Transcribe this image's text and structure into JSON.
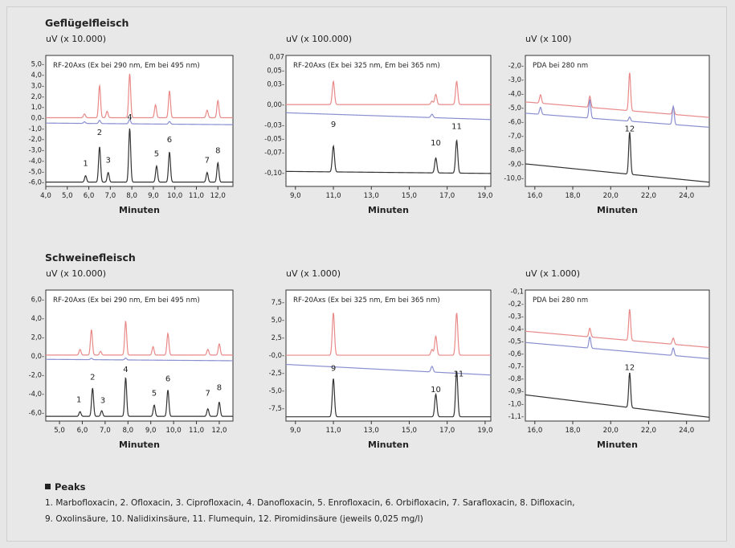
{
  "sections": [
    {
      "title": "Geflügelfleisch"
    },
    {
      "title": "Schweinefleisch"
    }
  ],
  "legend": {
    "header": "Peaks",
    "line1": "1. Marbofloxacin, 2. Ofloxacin, 3. Ciprofloxacin, 4. Danofloxacin, 5. Enrofloxacin, 6. Orbifloxacin, 7. Sarafloxacin, 8. Difloxacin,",
    "line2": "9. Oxolinsäure, 10. Nalidixinsäure, 11. Flumequin, 12. Piromidinsäure (jeweils 0,025 mg/l)"
  },
  "colors": {
    "red": "#e88a88",
    "blue": "#8a8fd0",
    "black": "#333333"
  },
  "chart_data": [
    {
      "type": "line",
      "section": 0,
      "col": 0,
      "unit_label": "uV (x 10.000)",
      "detector_label": "RF-20Axs (Ex bei 290 nm, Em bei 495 nm)",
      "xlabel": "Minuten",
      "xlim": [
        4.0,
        12.7
      ],
      "ylim": [
        -6.4,
        5.8
      ],
      "xticks": [
        4.0,
        5.0,
        6.0,
        7.0,
        8.0,
        9.0,
        10.0,
        11.0,
        12.0
      ],
      "xtick_labels": [
        "4,0",
        "5,0",
        "6,0",
        "7,0",
        "8,0",
        "9,0",
        "10,0",
        "11,0",
        "12,0"
      ],
      "yticks": [
        5.0,
        4.0,
        3.0,
        2.0,
        1.0,
        0.0,
        -1.0,
        -2.0,
        -3.0,
        -4.0,
        -5.0,
        -6.0
      ],
      "ytick_labels": [
        "5,0-",
        "4,0-",
        "3,0-",
        "2,0-",
        "1,0-",
        "0,0-",
        "-1,0-",
        "-2,0-",
        "-3,0-",
        "-4,0-",
        "-5,0-",
        "-6,0-"
      ],
      "series": [
        {
          "color": "red",
          "baseline": [
            0.0,
            0.0
          ],
          "peaks": [
            [
              5.8,
              0.35
            ],
            [
              6.5,
              3.0
            ],
            [
              6.85,
              0.6
            ],
            [
              7.9,
              4.1
            ],
            [
              9.1,
              1.2
            ],
            [
              9.75,
              2.5
            ],
            [
              11.5,
              0.7
            ],
            [
              12.0,
              1.6
            ]
          ]
        },
        {
          "color": "blue",
          "baseline": [
            -0.5,
            -0.65
          ],
          "peaks": [
            [
              5.8,
              0.15
            ],
            [
              6.5,
              0.3
            ],
            [
              7.9,
              0.4
            ],
            [
              9.75,
              0.25
            ]
          ]
        },
        {
          "color": "black",
          "baseline": [
            -6.0,
            -6.0
          ],
          "peaks": [
            [
              5.85,
              0.6
            ],
            [
              6.5,
              3.3
            ],
            [
              6.9,
              0.9
            ],
            [
              7.9,
              5.0
            ],
            [
              9.15,
              1.5
            ],
            [
              9.75,
              2.8
            ],
            [
              11.5,
              0.9
            ],
            [
              12.0,
              1.8
            ]
          ]
        }
      ],
      "peak_labels": [
        {
          "t": "1",
          "x": 5.85,
          "y": -4.5
        },
        {
          "t": "2",
          "x": 6.5,
          "y": -1.6
        },
        {
          "t": "3",
          "x": 6.9,
          "y": -4.2
        },
        {
          "t": "4",
          "x": 7.9,
          "y": -0.2
        },
        {
          "t": "5",
          "x": 9.15,
          "y": -3.6
        },
        {
          "t": "6",
          "x": 9.75,
          "y": -2.3
        },
        {
          "t": "7",
          "x": 11.5,
          "y": -4.2
        },
        {
          "t": "8",
          "x": 12.0,
          "y": -3.3
        }
      ]
    },
    {
      "type": "line",
      "section": 0,
      "col": 1,
      "unit_label": "uV (x 100.000)",
      "detector_label": "RF-20Axs (Ex bei 325 nm, Em bei 365 nm)",
      "xlabel": "Minuten",
      "xlim": [
        8.5,
        19.3
      ],
      "ylim": [
        -0.12,
        0.072
      ],
      "xticks": [
        9.0,
        11.0,
        13.0,
        15.0,
        17.0,
        19.0
      ],
      "xtick_labels": [
        "9,0",
        "11,0",
        "13,0",
        "15,0",
        "17,0",
        "19,0"
      ],
      "yticks": [
        0.07,
        0.05,
        0.03,
        0.0,
        -0.03,
        -0.05,
        -0.07,
        -0.1
      ],
      "ytick_labels": [
        "0,07",
        "0,05-",
        "0,03-",
        "0,00-",
        "-0,03-",
        "-0,05-",
        "-0,07-",
        "-0,10-"
      ],
      "series": [
        {
          "color": "red",
          "baseline": [
            0.0,
            0.0
          ],
          "peaks": [
            [
              11.0,
              0.034
            ],
            [
              16.2,
              0.005
            ],
            [
              16.4,
              0.015
            ],
            [
              17.5,
              0.034
            ]
          ]
        },
        {
          "color": "blue",
          "baseline": [
            -0.012,
            -0.022
          ],
          "peaks": [
            [
              16.2,
              0.005
            ]
          ]
        },
        {
          "color": "black",
          "baseline": [
            -0.098,
            -0.101
          ],
          "peaks": [
            [
              11.0,
              0.038
            ],
            [
              16.4,
              0.022
            ],
            [
              17.5,
              0.048
            ]
          ]
        }
      ],
      "peak_labels": [
        {
          "t": "9",
          "x": 11.0,
          "y": -0.033
        },
        {
          "t": "10",
          "x": 16.4,
          "y": -0.06
        },
        {
          "t": "11",
          "x": 17.5,
          "y": -0.036
        }
      ]
    },
    {
      "type": "line",
      "section": 0,
      "col": 2,
      "unit_label": "uV (x 100)",
      "detector_label": "PDA bei 280 nm",
      "xlabel": "Minuten",
      "xlim": [
        15.5,
        25.2
      ],
      "ylim": [
        -10.6,
        -1.3
      ],
      "xticks": [
        16.0,
        18.0,
        20.0,
        22.0,
        24.0
      ],
      "xtick_labels": [
        "16,0",
        "18,0",
        "20,0",
        "22,0",
        "24,0"
      ],
      "yticks": [
        -2.0,
        -3.0,
        -4.0,
        -5.0,
        -6.0,
        -7.0,
        -8.0,
        -9.0,
        -10.0
      ],
      "ytick_labels": [
        "-2,0-",
        "-3,0-",
        "-4,0-",
        "-5,0-",
        "-6,0-",
        "-7,0-",
        "-8,0-",
        "-9,0-",
        "-10,0-"
      ],
      "series": [
        {
          "color": "red",
          "baseline": [
            -4.6,
            -5.7
          ],
          "peaks": [
            [
              16.3,
              0.6
            ],
            [
              18.9,
              0.8
            ],
            [
              21.0,
              2.7
            ],
            [
              23.3,
              0.5
            ]
          ]
        },
        {
          "color": "blue",
          "baseline": [
            -5.4,
            -6.4
          ],
          "peaks": [
            [
              16.3,
              0.5
            ],
            [
              18.9,
              1.3
            ],
            [
              21.0,
              0.3
            ],
            [
              23.3,
              1.3
            ]
          ]
        },
        {
          "color": "black",
          "baseline": [
            -9.0,
            -10.3
          ],
          "peaks": [
            [
              21.0,
              3.0
            ]
          ]
        }
      ],
      "peak_labels": [
        {
          "t": "12",
          "x": 21.0,
          "y": -6.7
        }
      ]
    },
    {
      "type": "line",
      "section": 1,
      "col": 0,
      "unit_label": "uV (x 10.000)",
      "detector_label": "RF-20Axs (Ex bei 290 nm, Em bei 495 nm)",
      "xlabel": "Minuten",
      "xlim": [
        4.4,
        12.6
      ],
      "ylim": [
        -6.9,
        7.0
      ],
      "xticks": [
        5.0,
        6.0,
        7.0,
        8.0,
        9.0,
        10.0,
        11.0,
        12.0
      ],
      "xtick_labels": [
        "5,0",
        "6,0",
        "7,0",
        "8,0",
        "9,0",
        "10,0",
        "11,0",
        "12,0"
      ],
      "yticks": [
        6.0,
        4.0,
        2.0,
        0.0,
        -2.0,
        -4.0,
        -6.0
      ],
      "ytick_labels": [
        "6,0-",
        "4,0-",
        "2,0-",
        "0,0-",
        "-2,0-",
        "-4,0-",
        "-6,0-"
      ],
      "series": [
        {
          "color": "red",
          "baseline": [
            0.1,
            0.1
          ],
          "peaks": [
            [
              5.9,
              0.6
            ],
            [
              6.4,
              2.7
            ],
            [
              6.8,
              0.4
            ],
            [
              7.9,
              3.6
            ],
            [
              9.1,
              0.9
            ],
            [
              9.75,
              2.3
            ],
            [
              11.5,
              0.6
            ],
            [
              12.0,
              1.2
            ]
          ]
        },
        {
          "color": "blue",
          "baseline": [
            -0.35,
            -0.5
          ],
          "peaks": [
            [
              6.4,
              0.15
            ],
            [
              7.9,
              0.2
            ]
          ]
        },
        {
          "color": "black",
          "baseline": [
            -6.4,
            -6.4
          ],
          "peaks": [
            [
              5.9,
              0.5
            ],
            [
              6.45,
              3.0
            ],
            [
              6.85,
              0.6
            ],
            [
              7.9,
              4.1
            ],
            [
              9.15,
              1.2
            ],
            [
              9.75,
              2.8
            ],
            [
              11.5,
              0.8
            ],
            [
              12.0,
              1.5
            ]
          ]
        }
      ],
      "peak_labels": [
        {
          "t": "1",
          "x": 5.85,
          "y": -4.9
        },
        {
          "t": "2",
          "x": 6.45,
          "y": -2.5
        },
        {
          "t": "3",
          "x": 6.9,
          "y": -5.0
        },
        {
          "t": "4",
          "x": 7.9,
          "y": -1.7
        },
        {
          "t": "5",
          "x": 9.15,
          "y": -4.2
        },
        {
          "t": "6",
          "x": 9.75,
          "y": -2.7
        },
        {
          "t": "7",
          "x": 11.5,
          "y": -4.2
        },
        {
          "t": "8",
          "x": 12.0,
          "y": -3.6
        }
      ]
    },
    {
      "type": "line",
      "section": 1,
      "col": 1,
      "unit_label": "uV (x 1.000)",
      "detector_label": "RF-20Axs (Ex bei 325 nm, Em bei 365 nm)",
      "xlabel": "Minuten",
      "xlim": [
        8.5,
        19.3
      ],
      "ylim": [
        -9.3,
        9.2
      ],
      "xticks": [
        9.0,
        11.0,
        13.0,
        15.0,
        17.0,
        19.0
      ],
      "xtick_labels": [
        "9,0",
        "11,0",
        "13,0",
        "15,0",
        "17,0",
        "19,0"
      ],
      "yticks": [
        7.5,
        5.0,
        2.5,
        0.0,
        -2.5,
        -5.0,
        -7.5
      ],
      "ytick_labels": [
        "7,5-",
        "5,0-",
        "2,5-",
        "-0,0-",
        "-2,5-",
        "-5,0-",
        "-7,5-"
      ],
      "series": [
        {
          "color": "red",
          "baseline": [
            0.0,
            0.0
          ],
          "peaks": [
            [
              11.0,
              6.0
            ],
            [
              16.2,
              0.8
            ],
            [
              16.4,
              2.7
            ],
            [
              17.5,
              6.0
            ]
          ]
        },
        {
          "color": "blue",
          "baseline": [
            -1.3,
            -2.8
          ],
          "peaks": [
            [
              16.2,
              0.8
            ]
          ]
        },
        {
          "color": "black",
          "baseline": [
            -8.7,
            -8.7
          ],
          "peaks": [
            [
              11.0,
              5.4
            ],
            [
              16.4,
              3.2
            ],
            [
              17.5,
              6.5
            ]
          ]
        }
      ],
      "peak_labels": [
        {
          "t": "9",
          "x": 11.0,
          "y": -2.2
        },
        {
          "t": "10",
          "x": 16.4,
          "y": -5.2
        },
        {
          "t": "11",
          "x": 17.6,
          "y": -3.0
        }
      ]
    },
    {
      "type": "line",
      "section": 1,
      "col": 2,
      "unit_label": "uV (x 1.000)",
      "detector_label": "PDA bei 280 nm",
      "xlabel": "Minuten",
      "xlim": [
        15.5,
        25.2
      ],
      "ylim": [
        -1.14,
        -0.09
      ],
      "xticks": [
        16.0,
        18.0,
        20.0,
        22.0,
        24.0
      ],
      "xtick_labels": [
        "16,0",
        "18,0",
        "20,0",
        "22,0",
        "24,0"
      ],
      "yticks": [
        -0.1,
        -0.2,
        -0.3,
        -0.4,
        -0.5,
        -0.6,
        -0.7,
        -0.8,
        -0.9,
        -1.0,
        -1.1
      ],
      "ytick_labels": [
        "-0,1",
        "-0,2-",
        "-0,3-",
        "-0,4-",
        "-0,5-",
        "-0,6-",
        "-0,7-",
        "-0,8-",
        "-0,9-",
        "-1,0-",
        "-1,1-"
      ],
      "series": [
        {
          "color": "red",
          "baseline": [
            -0.42,
            -0.55
          ],
          "peaks": [
            [
              18.9,
              0.07
            ],
            [
              21.0,
              0.25
            ],
            [
              23.3,
              0.05
            ]
          ]
        },
        {
          "color": "blue",
          "baseline": [
            -0.51,
            -0.64
          ],
          "peaks": [
            [
              18.9,
              0.09
            ],
            [
              23.3,
              0.06
            ]
          ]
        },
        {
          "color": "black",
          "baseline": [
            -0.93,
            -1.11
          ],
          "peaks": [
            [
              21.0,
              0.28
            ]
          ]
        }
      ],
      "peak_labels": [
        {
          "t": "12",
          "x": 21.0,
          "y": -0.73
        }
      ]
    }
  ]
}
